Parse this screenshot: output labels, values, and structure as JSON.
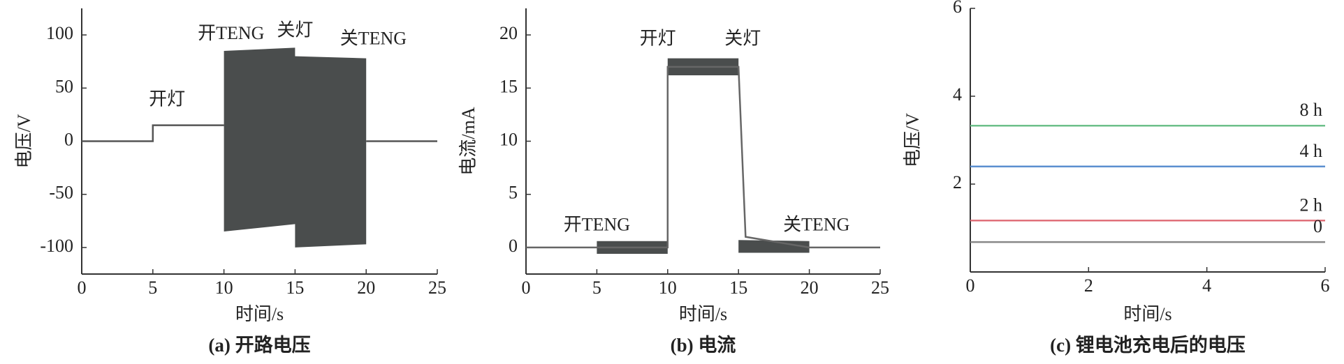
{
  "chart_data": [
    {
      "type": "line",
      "caption": "(a) 开路电压",
      "xlabel": "时间/s",
      "ylabel": "电压/V",
      "xlim": [
        0,
        25
      ],
      "xticks": [
        0,
        5,
        10,
        15,
        20,
        25
      ],
      "ylim": [
        -125,
        125
      ],
      "yticks": [
        -100,
        -50,
        0,
        50,
        100
      ],
      "series": [
        {
          "color": "#555555",
          "x": [
            0,
            5,
            5,
            10,
            15,
            20,
            25
          ],
          "values": [
            0,
            0,
            15,
            15,
            null,
            0,
            0
          ]
        }
      ],
      "bands": [
        {
          "color": "#4a4d4d",
          "x": [
            10,
            15,
            15,
            20
          ],
          "high": [
            85,
            88,
            80,
            78
          ],
          "low": [
            -85,
            -78,
            -100,
            -97
          ]
        }
      ],
      "annotations": [
        "开灯",
        "开TENG",
        "关灯",
        "关TENG"
      ]
    },
    {
      "type": "line",
      "caption": "(b) 电流",
      "xlabel": "时间/s",
      "ylabel": "电流/mA",
      "xlim": [
        0,
        25
      ],
      "xticks": [
        0,
        5,
        10,
        15,
        20,
        25
      ],
      "ylim": [
        -2.5,
        22.5
      ],
      "yticks": [
        0,
        5,
        10,
        15,
        20
      ],
      "series": [
        {
          "color": "#666666",
          "x": [
            0,
            5,
            10,
            10,
            15,
            15.5,
            20,
            25
          ],
          "values": [
            0,
            0,
            0,
            17,
            17,
            1,
            0,
            0
          ]
        }
      ],
      "bands": [
        {
          "color": "#4a4d4d",
          "x": [
            5,
            10
          ],
          "high": [
            0.6,
            0.6
          ],
          "low": [
            -0.6,
            -0.6
          ]
        },
        {
          "color": "#4a4d4d",
          "x": [
            10,
            15
          ],
          "high": [
            17.8,
            17.8
          ],
          "low": [
            16.2,
            16.2
          ]
        },
        {
          "color": "#4a4d4d",
          "x": [
            15,
            20
          ],
          "high": [
            0.7,
            0.6
          ],
          "low": [
            -0.5,
            -0.5
          ]
        }
      ],
      "annotations": [
        "开TENG",
        "开灯",
        "关灯",
        "关TENG"
      ]
    },
    {
      "type": "line",
      "caption": "(c) 锂电池充电后的电压",
      "xlabel": "时间/s",
      "ylabel": "电压/V",
      "xlim": [
        0,
        6
      ],
      "xticks": [
        0,
        2,
        4,
        6
      ],
      "ylim": [
        0,
        6
      ],
      "yticks": [
        2,
        4,
        6
      ],
      "series": [
        {
          "name": "8 h",
          "color": "#6dbf8a",
          "x": [
            0,
            6
          ],
          "values": [
            3.33,
            3.33
          ]
        },
        {
          "name": "4 h",
          "color": "#5b8fd0",
          "x": [
            0,
            6
          ],
          "values": [
            2.4,
            2.4
          ]
        },
        {
          "name": "2 h",
          "color": "#e0707a",
          "x": [
            0,
            6
          ],
          "values": [
            1.17,
            1.17
          ]
        },
        {
          "name": "0",
          "color": "#888888",
          "x": [
            0,
            6
          ],
          "values": [
            0.68,
            0.68
          ]
        }
      ]
    }
  ]
}
